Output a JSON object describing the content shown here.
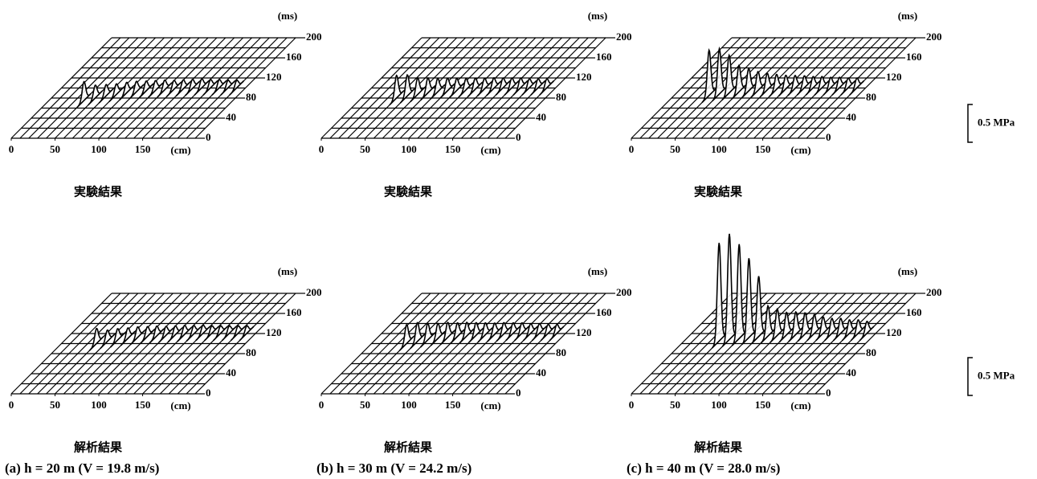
{
  "chart_data": [
    {
      "type": "waterfall",
      "title": "実験結果",
      "xlabel": "(cm)",
      "ylabel": "(ms)",
      "xlim": [
        0,
        210
      ],
      "ylim": [
        0,
        200
      ],
      "xticks": [
        0,
        50,
        100,
        150
      ],
      "yticks": [
        0,
        40,
        80,
        120,
        160,
        200
      ],
      "x": [
        40,
        50,
        60,
        70,
        80,
        90,
        100,
        110,
        120,
        130,
        140,
        150,
        160,
        170,
        180,
        190,
        200
      ],
      "t": [
        75,
        80,
        84,
        87,
        90,
        92,
        94,
        95,
        96,
        97,
        98,
        99,
        100,
        100,
        100,
        100,
        100
      ],
      "values": [
        0.25,
        0.17,
        0.15,
        0.14,
        0.14,
        0.14,
        0.13,
        0.13,
        0.13,
        0.12,
        0.12,
        0.12,
        0.12,
        0.11,
        0.11,
        0.1,
        0.1
      ]
    },
    {
      "type": "waterfall",
      "title": "実験結果",
      "xlabel": "(cm)",
      "ylabel": "(ms)",
      "xlim": [
        0,
        210
      ],
      "ylim": [
        0,
        200
      ],
      "xticks": [
        0,
        50,
        100,
        150
      ],
      "yticks": [
        0,
        40,
        80,
        120,
        160,
        200
      ],
      "x": [
        40,
        50,
        60,
        70,
        80,
        90,
        100,
        110,
        120,
        130,
        140,
        150,
        160,
        170,
        180,
        190,
        200
      ],
      "t": [
        80,
        84,
        87,
        90,
        92,
        94,
        95,
        96,
        97,
        98,
        99,
        100,
        100,
        100,
        100,
        100,
        100
      ],
      "values": [
        0.3,
        0.28,
        0.22,
        0.2,
        0.18,
        0.17,
        0.16,
        0.15,
        0.15,
        0.14,
        0.14,
        0.13,
        0.13,
        0.13,
        0.12,
        0.12,
        0.12
      ]
    },
    {
      "type": "waterfall",
      "title": "実験結果",
      "xlabel": "(cm)",
      "ylabel": "(ms)",
      "xlim": [
        0,
        210
      ],
      "ylim": [
        0,
        200
      ],
      "xticks": [
        0,
        50,
        100,
        150
      ],
      "yticks": [
        0,
        40,
        80,
        120,
        160,
        200
      ],
      "x": [
        40,
        50,
        60,
        70,
        80,
        90,
        100,
        110,
        120,
        130,
        140,
        150,
        160,
        170,
        180,
        190,
        200
      ],
      "t": [
        85,
        88,
        90,
        92,
        94,
        95,
        96,
        97,
        98,
        99,
        100,
        100,
        100,
        100,
        100,
        100,
        100
      ],
      "values": [
        0.6,
        0.6,
        0.5,
        0.35,
        0.3,
        0.25,
        0.22,
        0.2,
        0.18,
        0.17,
        0.16,
        0.15,
        0.15,
        0.14,
        0.14,
        0.13,
        0.13
      ]
    },
    {
      "type": "waterfall",
      "title": "解析結果",
      "xlabel": "(cm)",
      "ylabel": "(ms)",
      "xlim": [
        0,
        210
      ],
      "ylim": [
        0,
        200
      ],
      "xticks": [
        0,
        50,
        100,
        150
      ],
      "yticks": [
        0,
        40,
        80,
        120,
        160,
        200
      ],
      "x": [
        40,
        50,
        60,
        70,
        80,
        90,
        100,
        110,
        120,
        130,
        140,
        150,
        160,
        170,
        180,
        190,
        200
      ],
      "t": [
        100,
        104,
        107,
        110,
        112,
        114,
        115,
        116,
        117,
        118,
        119,
        120,
        120,
        120,
        120,
        120,
        120
      ],
      "values": [
        0.2,
        0.15,
        0.15,
        0.14,
        0.14,
        0.13,
        0.13,
        0.12,
        0.12,
        0.12,
        0.11,
        0.11,
        0.1,
        0.1,
        0.1,
        0.1,
        0.1
      ]
    },
    {
      "type": "waterfall",
      "title": "解析結果",
      "xlabel": "(cm)",
      "ylabel": "(ms)",
      "xlim": [
        0,
        210
      ],
      "ylim": [
        0,
        200
      ],
      "xticks": [
        0,
        50,
        100,
        150
      ],
      "yticks": [
        0,
        40,
        80,
        120,
        160,
        200
      ],
      "x": [
        40,
        50,
        60,
        70,
        80,
        90,
        100,
        110,
        120,
        130,
        140,
        150,
        160,
        170,
        180,
        190,
        200
      ],
      "t": [
        100,
        104,
        107,
        110,
        112,
        114,
        115,
        116,
        117,
        118,
        119,
        120,
        120,
        120,
        120,
        120,
        120
      ],
      "values": [
        0.25,
        0.25,
        0.22,
        0.2,
        0.2,
        0.18,
        0.18,
        0.17,
        0.16,
        0.15,
        0.15,
        0.14,
        0.14,
        0.13,
        0.13,
        0.12,
        0.12
      ]
    },
    {
      "type": "waterfall",
      "title": "解析結果",
      "xlabel": "(cm)",
      "ylabel": "(ms)",
      "xlim": [
        0,
        210
      ],
      "ylim": [
        0,
        200
      ],
      "xticks": [
        0,
        50,
        100,
        150
      ],
      "yticks": [
        0,
        40,
        80,
        120,
        160,
        200
      ],
      "x": [
        40,
        50,
        60,
        70,
        80,
        90,
        100,
        110,
        120,
        130,
        140,
        150,
        160,
        170,
        180,
        190,
        200
      ],
      "t": [
        105,
        108,
        110,
        112,
        114,
        115,
        116,
        117,
        118,
        119,
        120,
        120,
        120,
        120,
        120,
        120,
        120
      ],
      "values": [
        1.3,
        1.4,
        1.25,
        1.05,
        0.8,
        0.4,
        0.35,
        0.3,
        0.3,
        0.28,
        0.25,
        0.22,
        0.2,
        0.2,
        0.18,
        0.18,
        0.16
      ]
    }
  ],
  "scale_bars": [
    {
      "value": 0.5,
      "label": "0.5 MPa"
    },
    {
      "value": 0.5,
      "label": "0.5 MPa"
    }
  ],
  "captions": [
    "(a)  h = 20 m  (V = 19.8 m/s)",
    "(b)  h = 30 m  (V = 24.2 m/s)",
    "(c)  h = 40 m  (V = 28.0 m/s)"
  ]
}
